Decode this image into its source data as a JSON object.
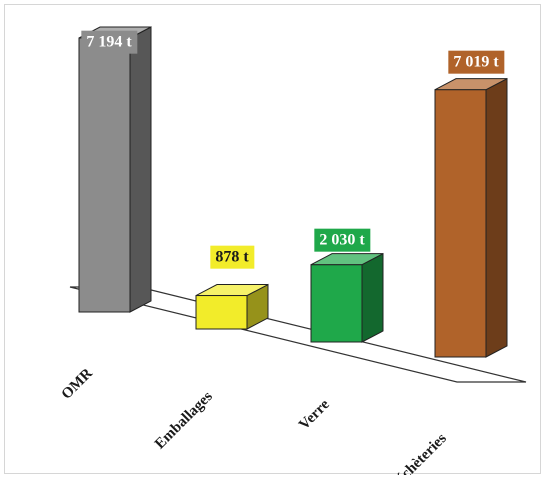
{
  "chart_data": {
    "type": "bar",
    "categories": [
      "OMR",
      "Emballages",
      "Verre",
      "Déchèteries"
    ],
    "values": [
      7194,
      878,
      2030,
      7019
    ],
    "data_labels": [
      "7 194 t",
      "878 t",
      "2 030 t",
      "7 019 t"
    ],
    "colors": [
      "#8c8c8c",
      "#f2ec2a",
      "#1fa84a",
      "#b0632a"
    ],
    "label_backgrounds": [
      "#8c8c8c",
      "#f2ec2a",
      "#1fa84a",
      "#b0632a"
    ],
    "label_text_colors": [
      "#ffffff",
      "#1a1a1a",
      "#ffffff",
      "#ffffff"
    ],
    "unit": "t",
    "title": "",
    "xlabel": "",
    "ylabel": "",
    "ylim": [
      0,
      7194
    ],
    "grid": false,
    "legend": "none",
    "style": "3d-bar"
  }
}
